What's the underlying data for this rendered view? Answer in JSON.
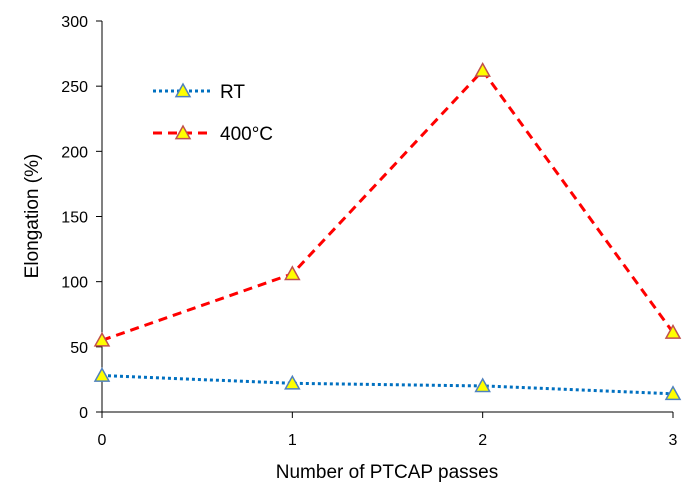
{
  "chart_data": {
    "type": "line",
    "title": "",
    "xlabel": "Number of PTCAP passes",
    "ylabel": "Elongation (%)",
    "x": [
      0,
      1,
      2,
      3
    ],
    "xlim": [
      0,
      3
    ],
    "ylim": [
      0,
      300
    ],
    "xticks": [
      "0",
      "1",
      "2",
      "3"
    ],
    "yticks": [
      "0",
      "50",
      "100",
      "150",
      "200",
      "250",
      "300"
    ],
    "grid": false,
    "legend_position": "top-left",
    "marker": "triangle",
    "marker_fill": "#ffff00",
    "series": [
      {
        "name": "RT",
        "values": [
          28,
          22,
          20,
          14
        ],
        "color": "#0070c0",
        "dash": "dotted",
        "marker_edge": "#4f81bd"
      },
      {
        "name": "400°C",
        "values": [
          55,
          106,
          262,
          61
        ],
        "color": "#ff0000",
        "dash": "dashed",
        "marker_edge": "#c0504d"
      }
    ]
  }
}
